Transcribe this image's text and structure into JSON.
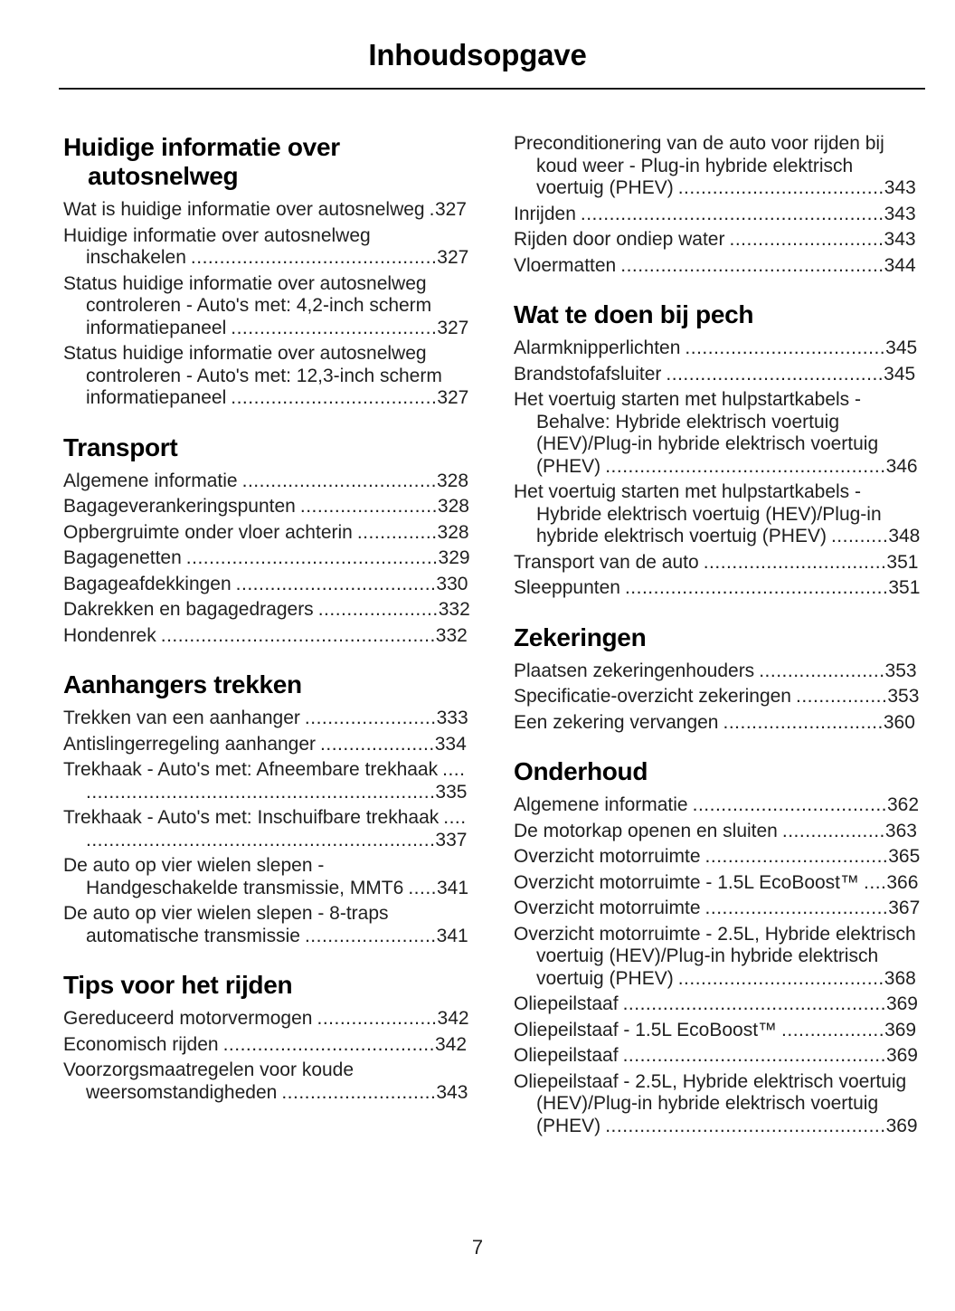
{
  "document": {
    "title": "Inhoudsopgave",
    "page_number": "7"
  },
  "toc": {
    "left_column": [
      {
        "heading": "Huidige informatie over autosnelweg",
        "entries": [
          {
            "label": "Wat is huidige informatie over autosnelweg",
            "page": "327"
          },
          {
            "label": "Huidige informatie over autosnelweg inschakelen",
            "page": "327"
          },
          {
            "label": "Status huidige informatie over autosnelweg controleren - Auto's met: 4,2-inch scherm informatiepaneel",
            "page": "327"
          },
          {
            "label": "Status huidige informatie over autosnelweg controleren - Auto's met: 12,3-inch scherm informatiepaneel",
            "page": "327"
          }
        ]
      },
      {
        "heading": "Transport",
        "entries": [
          {
            "label": "Algemene informatie",
            "page": "328"
          },
          {
            "label": "Bagageverankeringspunten",
            "page": "328"
          },
          {
            "label": "Opbergruimte onder vloer achterin",
            "page": "328"
          },
          {
            "label": "Bagagenetten",
            "page": "329"
          },
          {
            "label": "Bagageafdekkingen",
            "page": "330"
          },
          {
            "label": "Dakrekken en bagagedragers",
            "page": "332"
          },
          {
            "label": "Hondenrek",
            "page": "332"
          }
        ]
      },
      {
        "heading": "Aanhangers trekken",
        "entries": [
          {
            "label": "Trekken van een aanhanger",
            "page": "333"
          },
          {
            "label": "Antislingerregeling aanhanger",
            "page": "334"
          },
          {
            "label": "Trekhaak - Auto's met: Afneembare trekhaak",
            "page": "335"
          },
          {
            "label": "Trekhaak - Auto's met: Inschuifbare trekhaak",
            "page": "337"
          },
          {
            "label": "De auto op vier wielen slepen - Handgeschakelde transmissie, MMT6",
            "page": "341"
          },
          {
            "label": "De auto op vier wielen slepen - 8-traps automatische transmissie",
            "page": "341"
          }
        ]
      },
      {
        "heading": "Tips voor het rijden",
        "entries": [
          {
            "label": "Gereduceerd motorvermogen",
            "page": "342"
          },
          {
            "label": "Economisch rijden",
            "page": "342"
          },
          {
            "label": "Voorzorgsmaatregelen voor koude weersomstandigheden",
            "page": "343"
          }
        ]
      }
    ],
    "right_column": [
      {
        "heading": "",
        "entries": [
          {
            "label": "Preconditionering van de auto voor rijden bij koud weer - Plug-in hybride elektrisch voertuig (PHEV)",
            "page": "343"
          },
          {
            "label": "Inrijden",
            "page": "343"
          },
          {
            "label": "Rijden door ondiep water",
            "page": "343"
          },
          {
            "label": "Vloermatten",
            "page": "344"
          }
        ]
      },
      {
        "heading": "Wat te doen bij pech",
        "entries": [
          {
            "label": "Alarmknipperlichten",
            "page": "345"
          },
          {
            "label": "Brandstofafsluiter",
            "page": "345"
          },
          {
            "label": "Het voertuig starten met hulpstartkabels - Behalve: Hybride elektrisch voertuig (HEV)/Plug-in hybride elektrisch voertuig (PHEV)",
            "page": "346"
          },
          {
            "label": "Het voertuig starten met hulpstartkabels - Hybride elektrisch voertuig (HEV)/Plug-in hybride elektrisch voertuig (PHEV)",
            "page": "348"
          },
          {
            "label": "Transport van de auto",
            "page": "351"
          },
          {
            "label": "Sleeppunten",
            "page": "351"
          }
        ]
      },
      {
        "heading": "Zekeringen",
        "entries": [
          {
            "label": "Plaatsen zekeringenhouders",
            "page": "353"
          },
          {
            "label": "Specificatie-overzicht zekeringen",
            "page": "353"
          },
          {
            "label": "Een zekering vervangen",
            "page": "360"
          }
        ]
      },
      {
        "heading": "Onderhoud",
        "entries": [
          {
            "label": "Algemene informatie",
            "page": "362"
          },
          {
            "label": "De motorkap openen en sluiten",
            "page": "363"
          },
          {
            "label": "Overzicht motorruimte",
            "page": "365"
          },
          {
            "label": "Overzicht motorruimte - 1.5L EcoBoost™",
            "page": "366"
          },
          {
            "label": "Overzicht motorruimte",
            "page": "367"
          },
          {
            "label": "Overzicht motorruimte - 2.5L, Hybride elektrisch voertuig (HEV)/Plug-in hybride elektrisch voertuig (PHEV)",
            "page": "368"
          },
          {
            "label": "Oliepeilstaaf",
            "page": "369"
          },
          {
            "label": "Oliepeilstaaf - 1.5L EcoBoost™",
            "page": "369"
          },
          {
            "label": "Oliepeilstaaf",
            "page": "369"
          },
          {
            "label": "Oliepeilstaaf - 2.5L, Hybride elektrisch voertuig (HEV)/Plug-in hybride elektrisch voertuig (PHEV)",
            "page": "369"
          }
        ]
      }
    ]
  }
}
